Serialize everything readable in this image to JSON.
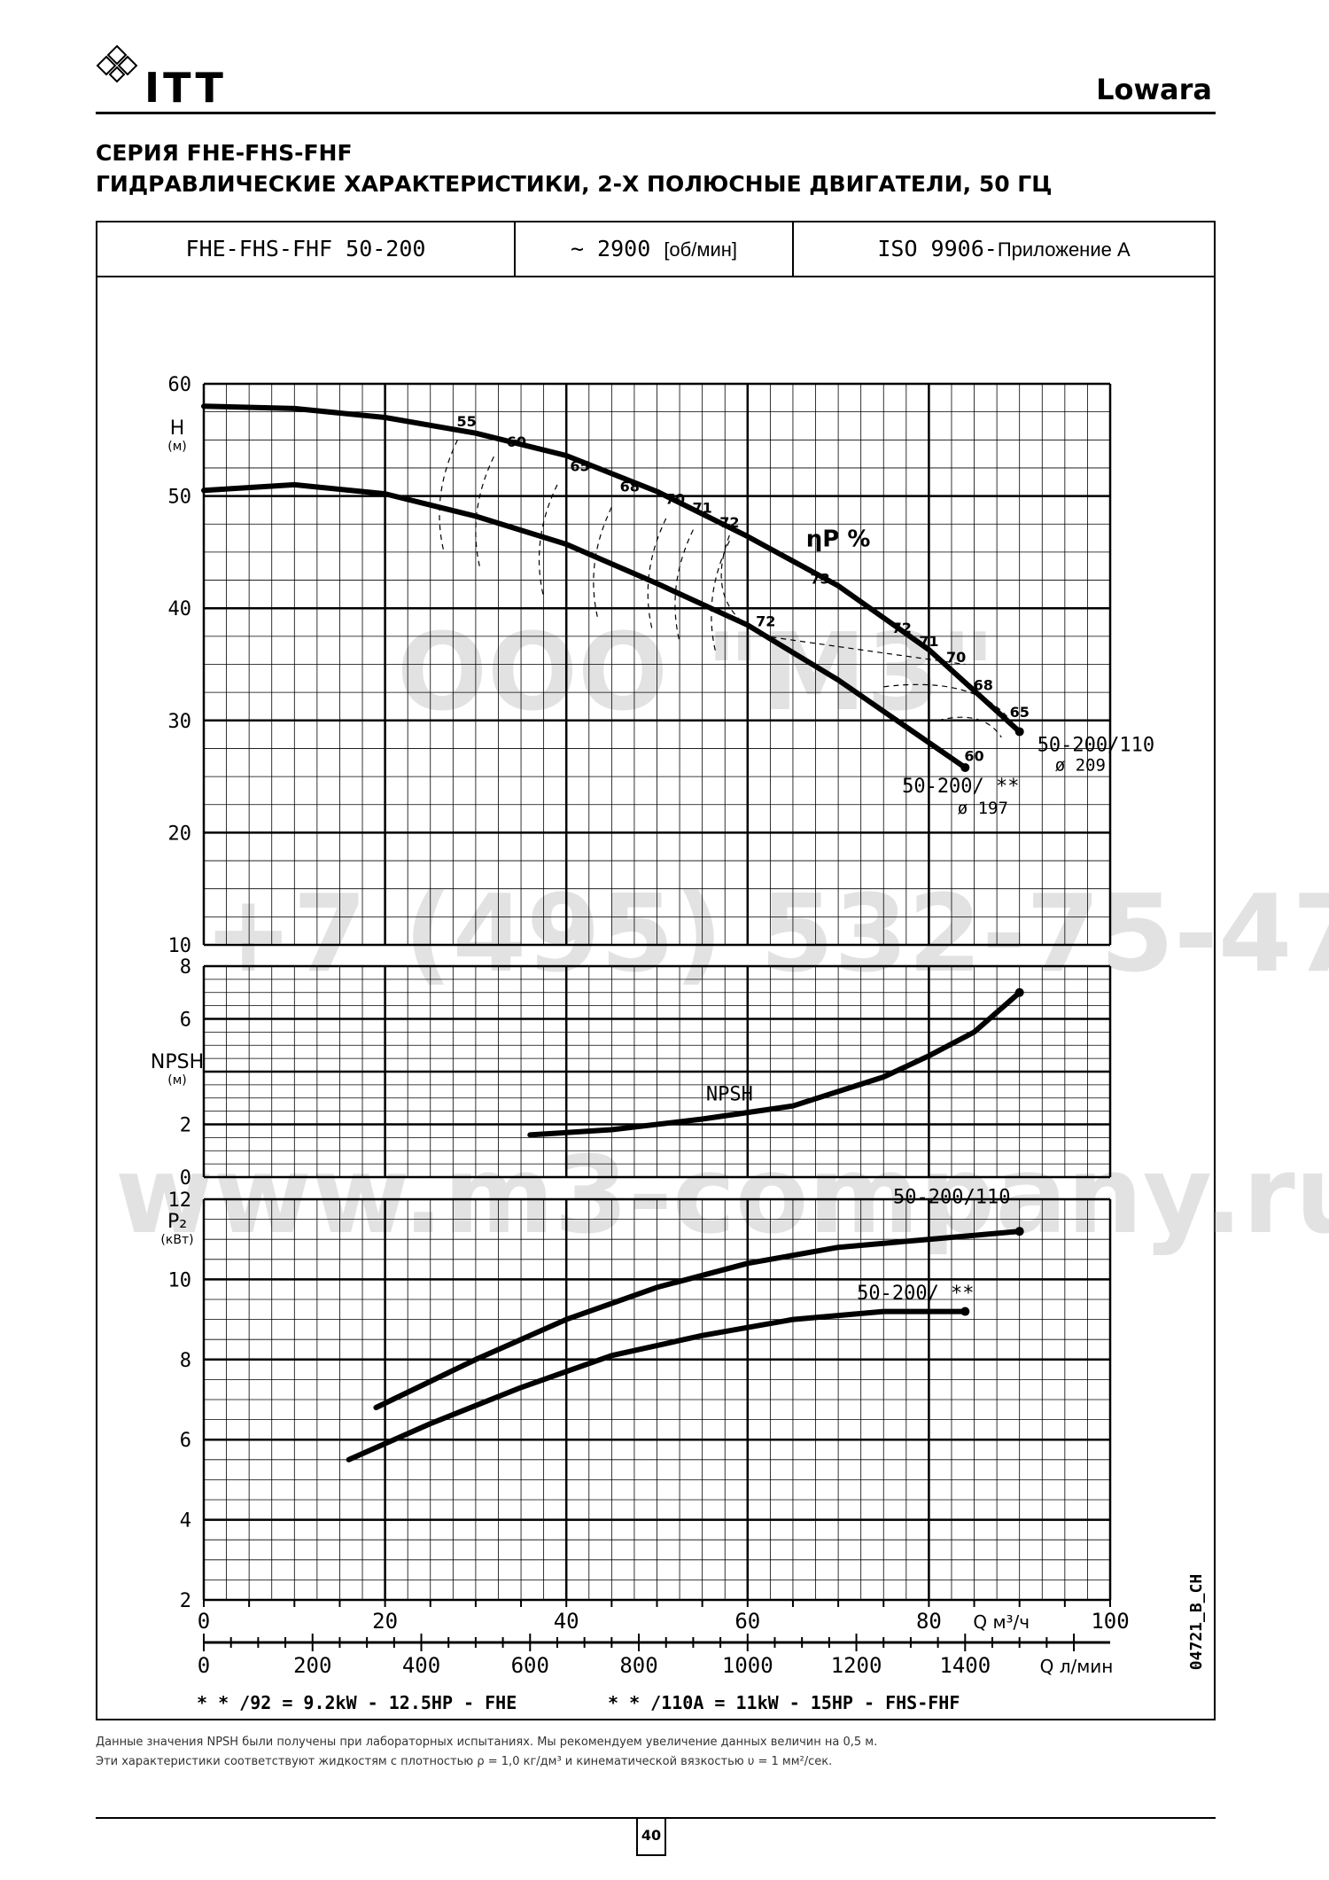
{
  "brand": {
    "name": "ITT",
    "right": "Lowara",
    "logo_icon": "diamond-lattice-icon"
  },
  "title": {
    "line1": "СЕРИЯ FHE-FHS-FHF",
    "line2": "ГИДРАВЛИЧЕСКИЕ ХАРАКТЕРИСТИКИ, 2-Х ПОЛЮСНЫЕ ДВИГАТЕЛИ, 50 ГЦ"
  },
  "info_row": {
    "model": "FHE-FHS-FHF 50-200",
    "speed_value": "~ 2900",
    "speed_unit": "[об/мин]",
    "standard": "ISO 9906-",
    "standard_annex": "Приложение А"
  },
  "watermarks": [
    "ООО \"М3\"",
    "+7 (495) 532-75-47",
    "www.m3-company.ru"
  ],
  "chart_data": {
    "type": "line",
    "x_axis": {
      "label": "Q м³/ч",
      "range": [
        0,
        100
      ],
      "ticks": [
        "0",
        "20",
        "40",
        "60",
        "80",
        "100"
      ]
    },
    "x_axis_secondary": {
      "label": "Q л/мин",
      "range": [
        0,
        1666.7
      ],
      "ticks": [
        "0",
        "200",
        "400",
        "600",
        "800",
        "1000",
        "1200",
        "1400"
      ]
    },
    "code": "04721_B_CH",
    "panels": [
      {
        "name": "head",
        "ylabel": "H",
        "yunit": "(м)",
        "ylim": [
          10,
          60
        ],
        "ticks": [
          "10",
          "20",
          "30",
          "40",
          "50",
          "60"
        ],
        "series": [
          {
            "name": "50-200/110",
            "diameter": "ø 209",
            "x": [
              0,
              10,
              20,
              30,
              40,
              50,
              60,
              70,
              80,
              90
            ],
            "y": [
              58.0,
              57.8,
              57.0,
              55.6,
              53.6,
              50.4,
              46.4,
              42.0,
              36.3,
              29.0
            ]
          },
          {
            "name": "50-200/ **",
            "diameter": "ø 197",
            "x": [
              0,
              10,
              20,
              30,
              40,
              50,
              60,
              70,
              84
            ],
            "y": [
              50.5,
              51.0,
              50.2,
              48.2,
              45.7,
              42.2,
              38.5,
              33.6,
              25.8
            ]
          }
        ],
        "efficiency_label": "ηP %",
        "efficiency_labels": [
          "55",
          "60",
          "65",
          "68",
          "70",
          "71",
          "72",
          "73",
          "72",
          "71",
          "70",
          "68",
          "65",
          "72",
          "60"
        ]
      },
      {
        "name": "npsh",
        "ylabel": "NPSH",
        "yunit": "(м)",
        "ylim": [
          0,
          8
        ],
        "ticks": [
          "0",
          "2",
          "6",
          "8"
        ],
        "series": [
          {
            "name": "NPSH",
            "x": [
              36,
              45,
              55,
              65,
              75,
              80,
              85,
              90
            ],
            "y": [
              1.6,
              1.8,
              2.2,
              2.7,
              3.8,
              4.6,
              5.5,
              7.0
            ]
          }
        ]
      },
      {
        "name": "power",
        "ylabel": "P₂",
        "yunit": "(кВт)",
        "ylim": [
          2,
          12
        ],
        "ticks": [
          "2",
          "4",
          "6",
          "8",
          "10",
          "12"
        ],
        "series": [
          {
            "name": "50-200/110",
            "x": [
              19,
              30,
              40,
              50,
              60,
              70,
              80,
              90
            ],
            "y": [
              6.8,
              8.0,
              9.0,
              9.8,
              10.4,
              10.8,
              11.0,
              11.2
            ]
          },
          {
            "name": "50-200/ **",
            "x": [
              16,
              25,
              35,
              45,
              55,
              65,
              75,
              84
            ],
            "y": [
              5.5,
              6.4,
              7.3,
              8.1,
              8.6,
              9.0,
              9.2,
              9.2
            ]
          }
        ]
      }
    ],
    "legend_notes": [
      "* * /92 = 9.2kW - 12.5HP - FHE",
      "* * /110A = 11kW - 15HP - FHS-FHF"
    ]
  },
  "notes": {
    "line1": "Данные значения NPSH были получены при лабораторных испытаниях. Мы рекомендуем увеличение данных величин на 0,5 м.",
    "line2": "Эти характеристики соответствуют жидкостям с плотностью ρ = 1,0 кг/дм³ и кинематической вязкостью υ = 1 мм²/сек."
  },
  "page_number": "40"
}
